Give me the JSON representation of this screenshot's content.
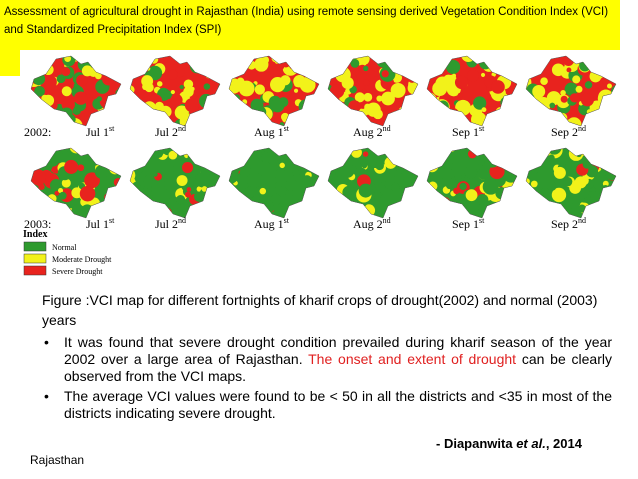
{
  "header": {
    "title": "Assessment of agricultural drought in Rajasthan (India) using remote sensing derived Vegetation Condition Index (VCI) and Standardized Precipitation Index (SPI)"
  },
  "figure": {
    "rows": [
      {
        "year": "2002:",
        "panels": [
          {
            "label": "Jul 1",
            "suffix": "st"
          },
          {
            "label": "Jul 2",
            "suffix": "nd"
          },
          {
            "label": "Aug 1",
            "suffix": "st"
          },
          {
            "label": "Aug 2",
            "suffix": "nd"
          },
          {
            "label": "Sep 1",
            "suffix": "st"
          },
          {
            "label": "Sep 2",
            "suffix": "nd"
          }
        ]
      },
      {
        "year": "2003:",
        "panels": [
          {
            "label": "Jul 1",
            "suffix": "st"
          },
          {
            "label": "Jul 2",
            "suffix": "nd"
          },
          {
            "label": "Aug 1",
            "suffix": "st"
          },
          {
            "label": "Aug 2",
            "suffix": "nd"
          },
          {
            "label": "Sep 1",
            "suffix": "st"
          },
          {
            "label": "Sep 2",
            "suffix": "nd"
          }
        ]
      }
    ],
    "legend": {
      "title": "Index",
      "items": [
        {
          "label": "Normal",
          "color": "#2e9a2e"
        },
        {
          "label": "Moderate Drought",
          "color": "#f2f21a"
        },
        {
          "label": "Severe Drought",
          "color": "#e8231e"
        }
      ]
    }
  },
  "caption": "Figure :VCI map for different fortnights of kharif crops of drought(2002) and normal (2003) years",
  "bullets": [
    [
      "It was found that severe drought condition prevailed during kharif season of the year 2002 over a large area of Rajasthan. ",
      "The onset and extent of drought",
      " can be clearly observed from the VCI maps."
    ],
    [
      "The average VCI values were found to be < 50 in all the districts and <35 in most of the districts indicating severe drought."
    ]
  ],
  "citation": [
    "- Diapanwita ",
    "et al.",
    ", 2014"
  ],
  "footer": "Rajasthan"
}
